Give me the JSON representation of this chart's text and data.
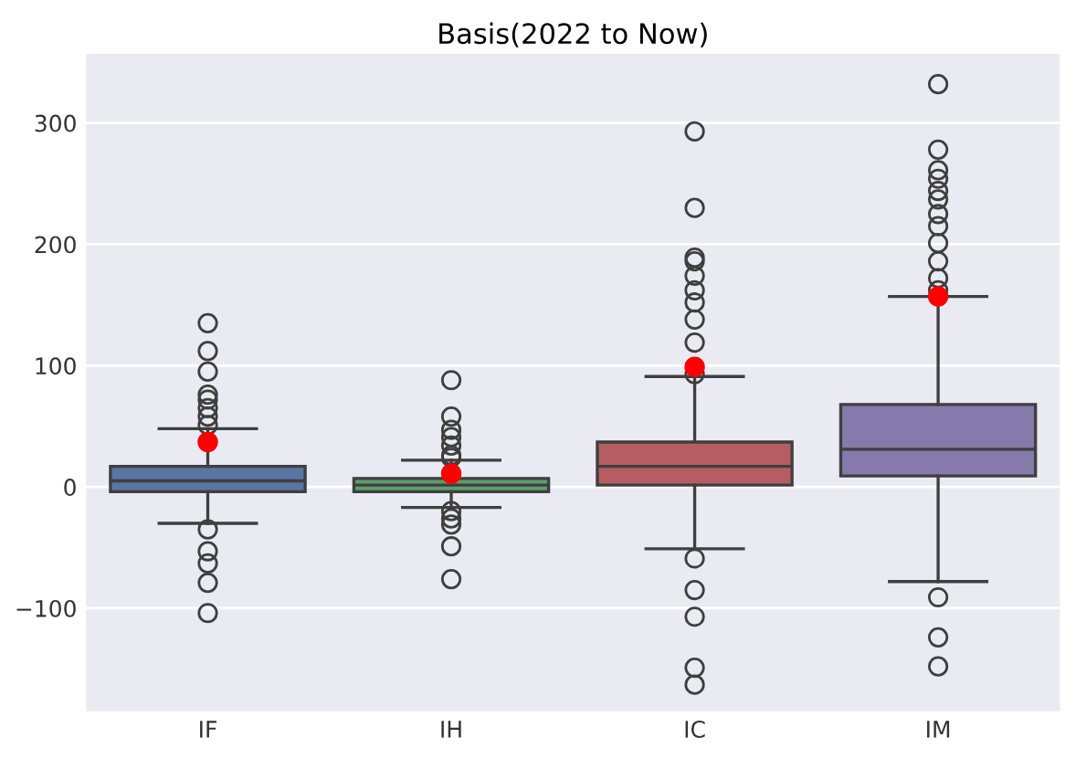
{
  "chart_data": {
    "type": "box",
    "title": "Basis(2022 to Now)",
    "categories": [
      "IF",
      "IH",
      "IC",
      "IM"
    ],
    "colors": [
      "#5975a4",
      "#5f9e6e",
      "#b55d60",
      "#857aab"
    ],
    "boxes": [
      {
        "low": -30,
        "q1": -4,
        "median": 5,
        "q3": 17,
        "high": 48,
        "outliers": [
          135,
          112,
          95,
          76,
          72,
          65,
          58,
          51,
          -35,
          -53,
          -63,
          -79,
          -104
        ]
      },
      {
        "low": -17,
        "q1": -4,
        "median": 1.5,
        "q3": 7,
        "high": 22,
        "outliers": [
          88,
          58,
          47,
          41,
          34,
          26,
          24,
          -20,
          -26,
          -31,
          -49,
          -76
        ]
      },
      {
        "low": -51,
        "q1": 1.5,
        "median": 17,
        "q3": 37,
        "high": 91,
        "outliers": [
          293,
          230,
          189,
          186,
          174,
          162,
          152,
          138,
          119,
          93,
          -59,
          -85,
          -107,
          -149,
          -163
        ]
      },
      {
        "low": -78,
        "q1": 9,
        "median": 31,
        "q3": 68,
        "high": 157,
        "outliers": [
          332,
          278,
          261,
          254,
          244,
          237,
          225,
          215,
          201,
          186,
          172,
          162,
          -91,
          -124,
          -148
        ]
      }
    ],
    "series": [
      {
        "type": "scatter",
        "color": "#ff0000",
        "x": [
          "IF",
          "IH",
          "IC",
          "IM"
        ],
        "values": [
          37,
          11,
          99,
          157
        ]
      }
    ],
    "ylim": [
      -185,
      357
    ],
    "yticks": [
      -100,
      0,
      100,
      200,
      300
    ],
    "grid": "y",
    "marker": "circle"
  }
}
